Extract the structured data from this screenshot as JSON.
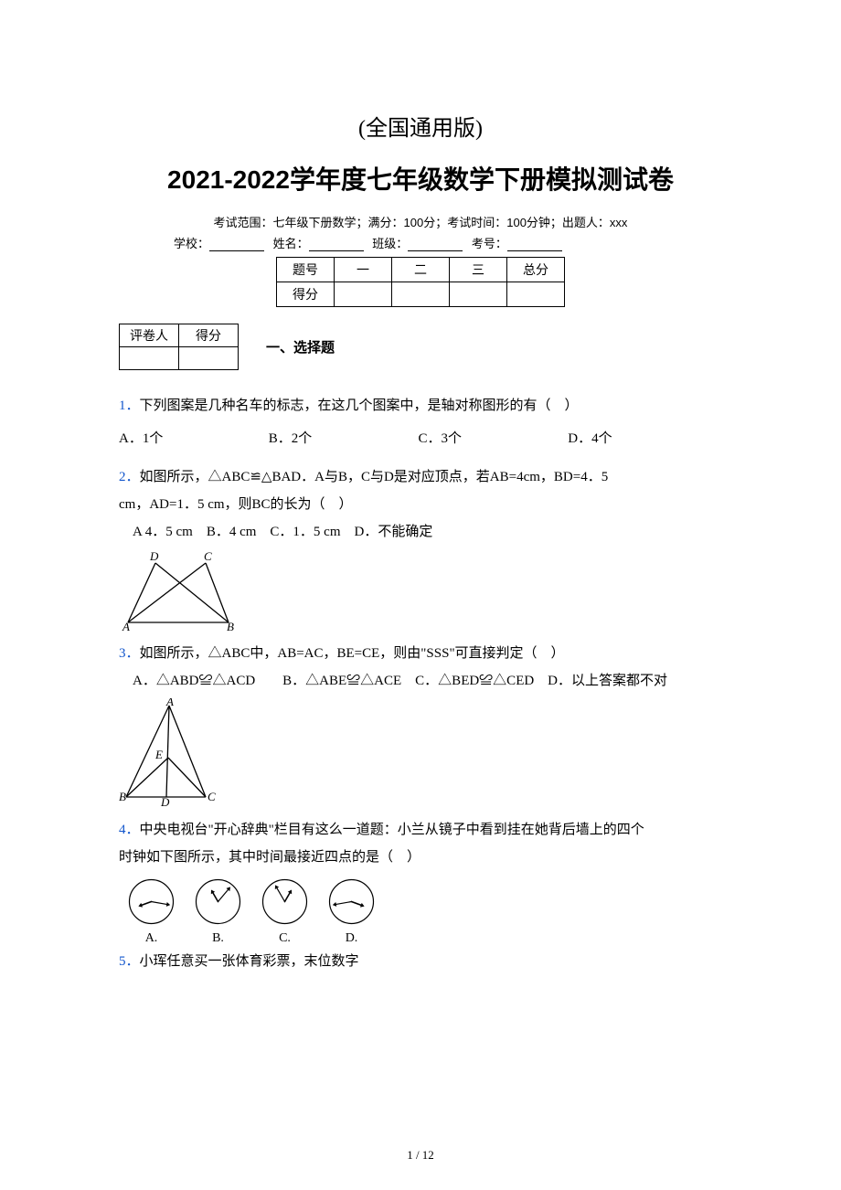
{
  "header": {
    "edition": "(全国通用版)",
    "title": "2021-2022学年度七年级数学下册模拟测试卷",
    "exam_info": "考试范围：七年级下册数学；满分：100分；考试时间：100分钟；出题人：xxx",
    "fill_labels": {
      "school": "学校：",
      "name": "姓名：",
      "class": "班级：",
      "id": "考号："
    }
  },
  "score_table": {
    "row1": [
      "题号",
      "一",
      "二",
      "三",
      "总分"
    ],
    "row2_label": "得分"
  },
  "grader_table": {
    "col1": "评卷人",
    "col2": "得分"
  },
  "section1": {
    "title": "一、选择题"
  },
  "q1": {
    "num": "1．",
    "text": "下列图案是几种名车的标志，在这几个图案中，是轴对称图形的有（　）",
    "opts": {
      "a": "A．1个",
      "b": "B．2个",
      "c": "C．3个",
      "d": "D．4个"
    }
  },
  "q2": {
    "num": "2．",
    "text1": "如图所示，△ABC≌△BAD．A与B，C与D是对应顶点，若AB=4cm，BD=4．5",
    "text2": "cm，AD=1．5 cm，则BC的长为（　）",
    "opts": "　A 4．5 cm　B．4 cm　C．1．5 cm　D．不能确定",
    "labels": {
      "A": "A",
      "B": "B",
      "C": "C",
      "D": "D"
    }
  },
  "q3": {
    "num": "3．",
    "text": "如图所示，△ABC中，AB=AC，BE=CE，则由\"SSS\"可直接判定（　）",
    "opts": "　A．△ABD≌△ACD　　B．△ABE≌△ACE　C．△BED≌△CED　D．以上答案都不对",
    "labels": {
      "A": "A",
      "B": "B",
      "C": "C",
      "D": "D",
      "E": "E"
    }
  },
  "q4": {
    "num": "4．",
    "text1": "中央电视台\"开心辞典\"栏目有这么一道题：小兰从镜子中看到挂在她背后墙上的四个",
    "text2": "时钟如下图所示，其中时间最接近四点的是（　）",
    "clock_labels": {
      "a": "A.",
      "b": "B.",
      "c": "C.",
      "d": "D."
    },
    "hands": {
      "a": {
        "h_angle": 250,
        "m_angle": 100
      },
      "b": {
        "h_angle": 330,
        "m_angle": 40
      },
      "c": {
        "h_angle": 30,
        "m_angle": 330
      },
      "d": {
        "h_angle": 110,
        "m_angle": 260
      }
    }
  },
  "q5": {
    "num": "5．",
    "text": "小珲任意买一张体育彩票，末位数字"
  },
  "page_number": "1 / 12",
  "colors": {
    "link": "#1155cc",
    "text": "#000000",
    "background": "#ffffff"
  }
}
